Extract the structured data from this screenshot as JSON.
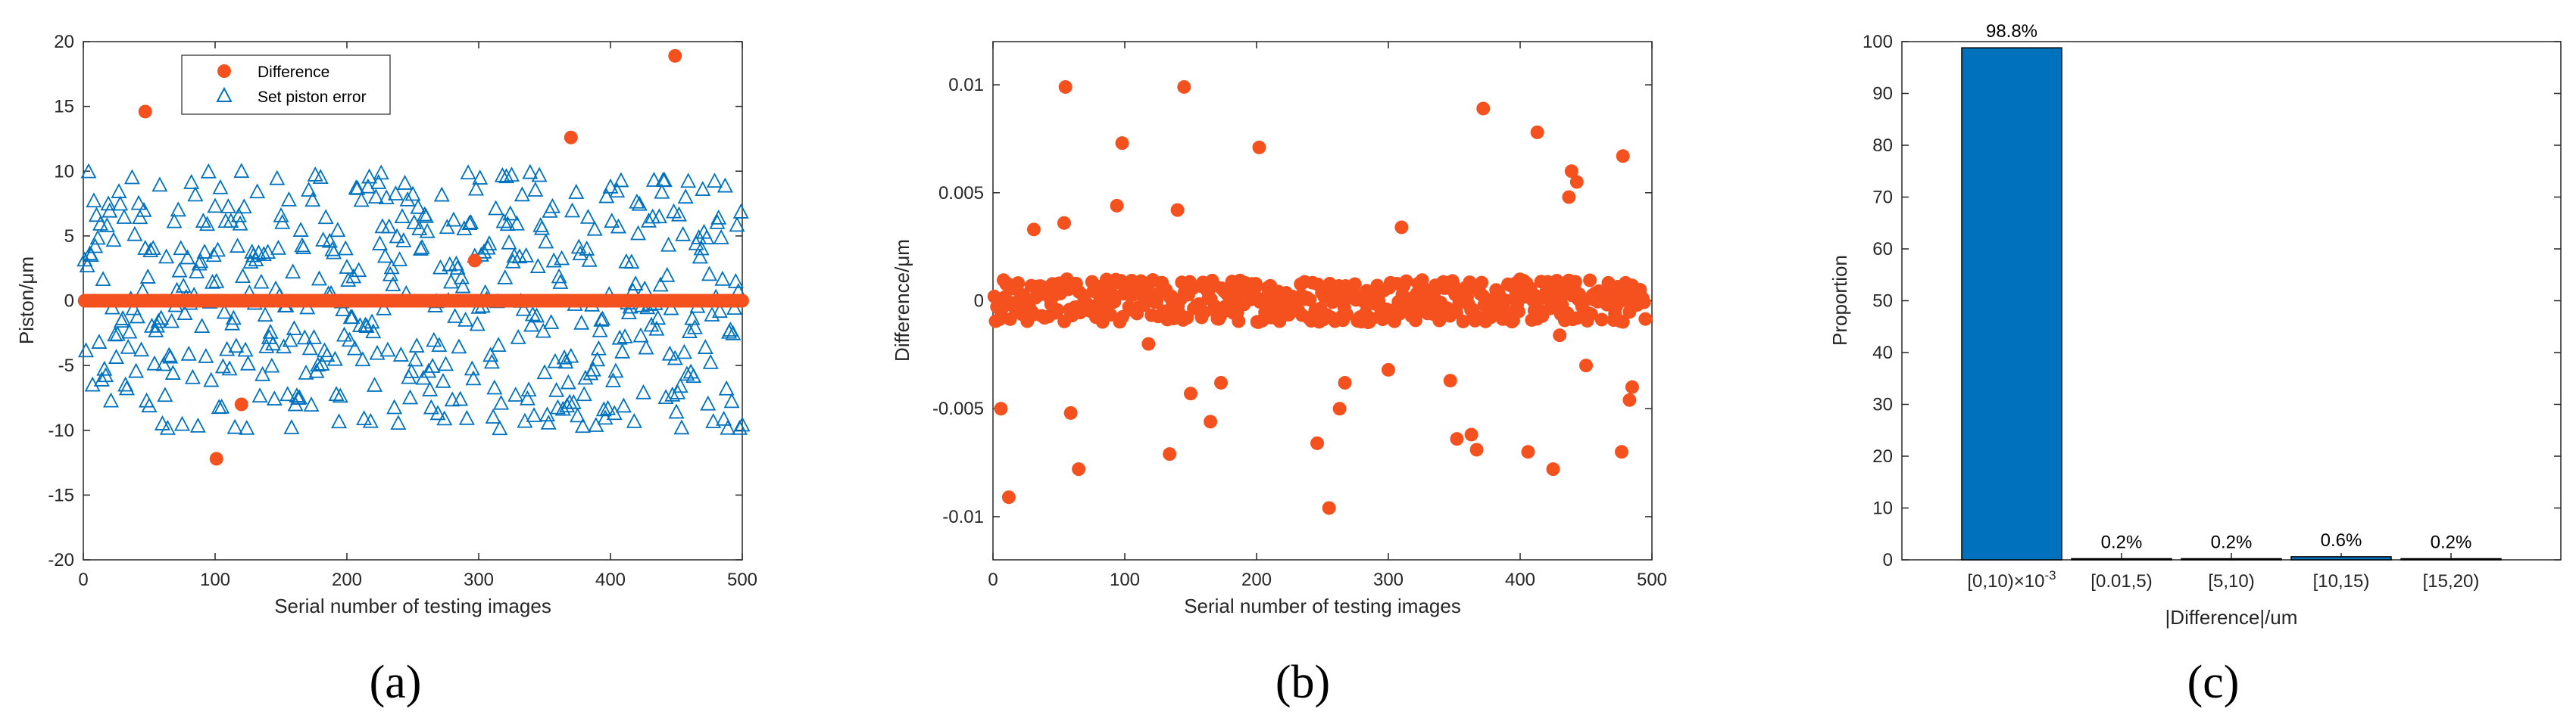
{
  "colors": {
    "difference": "#F4511E",
    "set_piston": "#0072BD",
    "bar": "#0072BD",
    "axis": "#262626"
  },
  "panels": {
    "a": {
      "label": "(a)"
    },
    "b": {
      "label": "(b)"
    },
    "c": {
      "label": "(c)"
    }
  },
  "chart_data": [
    {
      "type": "scatter",
      "xlabel": "Serial number of testing images",
      "ylabel": "Piston/μm",
      "xlim": [
        0,
        500
      ],
      "ylim": [
        -20,
        20
      ],
      "xticks": [
        "0",
        "100",
        "200",
        "300",
        "400",
        "500"
      ],
      "yticks": [
        "-20",
        "-15",
        "-10",
        "-5",
        "0",
        "5",
        "10",
        "15",
        "20"
      ],
      "grid": false,
      "legend_position": "top-left",
      "legend": [
        "Difference",
        "Set piston error"
      ],
      "series": [
        {
          "name": "Difference",
          "marker": "filled-circle",
          "baseline_value": 0,
          "baseline_x_range": [
            1,
            500
          ],
          "outliers": [
            {
              "x": 47,
              "y": 14.6
            },
            {
              "x": 101,
              "y": -12.2
            },
            {
              "x": 120,
              "y": -8.0
            },
            {
              "x": 297,
              "y": 3.1
            },
            {
              "x": 370,
              "y": 12.6
            },
            {
              "x": 449,
              "y": 18.9
            }
          ]
        },
        {
          "name": "Set piston error",
          "marker": "open-triangle",
          "count": 500,
          "value_range": [
            -10,
            10
          ],
          "distribution": "uniform-random"
        }
      ]
    },
    {
      "type": "scatter",
      "xlabel": "Serial number of testing images",
      "ylabel": "Difference/μm",
      "xlim": [
        0,
        500
      ],
      "ylim": [
        -0.012,
        0.012
      ],
      "xticks": [
        "0",
        "100",
        "200",
        "300",
        "400",
        "500"
      ],
      "yticks": [
        "-0.01",
        "-0.005",
        "0",
        "0.005",
        "0.01"
      ],
      "grid": false,
      "series": [
        {
          "name": "Difference",
          "marker": "filled-circle",
          "dense_band": {
            "count": 494,
            "range": [
              -0.001,
              0.001
            ]
          },
          "outliers": [
            {
              "x": 6,
              "y": -0.005
            },
            {
              "x": 12,
              "y": -0.0091
            },
            {
              "x": 31,
              "y": 0.0033
            },
            {
              "x": 54,
              "y": 0.0036
            },
            {
              "x": 55,
              "y": 0.0099
            },
            {
              "x": 59,
              "y": -0.0052
            },
            {
              "x": 65,
              "y": -0.0078
            },
            {
              "x": 94,
              "y": 0.0044
            },
            {
              "x": 98,
              "y": 0.0073
            },
            {
              "x": 118,
              "y": -0.002
            },
            {
              "x": 134,
              "y": -0.0071
            },
            {
              "x": 140,
              "y": 0.0042
            },
            {
              "x": 145,
              "y": 0.0099
            },
            {
              "x": 150,
              "y": -0.0043
            },
            {
              "x": 165,
              "y": -0.0056
            },
            {
              "x": 173,
              "y": -0.0038
            },
            {
              "x": 202,
              "y": 0.0071
            },
            {
              "x": 246,
              "y": -0.0066
            },
            {
              "x": 255,
              "y": -0.0096
            },
            {
              "x": 263,
              "y": -0.005
            },
            {
              "x": 267,
              "y": -0.0038
            },
            {
              "x": 300,
              "y": -0.0032
            },
            {
              "x": 310,
              "y": 0.0034
            },
            {
              "x": 347,
              "y": -0.0037
            },
            {
              "x": 352,
              "y": -0.0064
            },
            {
              "x": 363,
              "y": -0.0062
            },
            {
              "x": 367,
              "y": -0.0069
            },
            {
              "x": 372,
              "y": 0.0089
            },
            {
              "x": 406,
              "y": -0.007
            },
            {
              "x": 413,
              "y": 0.0078
            },
            {
              "x": 425,
              "y": -0.0078
            },
            {
              "x": 430,
              "y": -0.0016
            },
            {
              "x": 437,
              "y": 0.0048
            },
            {
              "x": 439,
              "y": 0.006
            },
            {
              "x": 443,
              "y": 0.0055
            },
            {
              "x": 450,
              "y": -0.003
            },
            {
              "x": 477,
              "y": -0.007
            },
            {
              "x": 478,
              "y": 0.0067
            },
            {
              "x": 483,
              "y": -0.0046
            },
            {
              "x": 485,
              "y": -0.004
            }
          ]
        }
      ]
    },
    {
      "type": "bar",
      "xlabel": "|Difference|/um",
      "ylabel": "Proportion",
      "ylim": [
        0,
        100
      ],
      "yticks": [
        "0",
        "10",
        "20",
        "30",
        "40",
        "50",
        "60",
        "70",
        "80",
        "90",
        "100"
      ],
      "grid": false,
      "categories": [
        "[0,10)×10",
        "[0.01,5)",
        "[5,10)",
        "[10,15)",
        "[15,20)"
      ],
      "category_superscripts": [
        "-3",
        "",
        "",
        "",
        ""
      ],
      "values": [
        98.8,
        0.2,
        0.2,
        0.6,
        0.2
      ],
      "data_labels": [
        "98.8%",
        "0.2%",
        "0.2%",
        "0.6%",
        "0.2%"
      ]
    }
  ]
}
